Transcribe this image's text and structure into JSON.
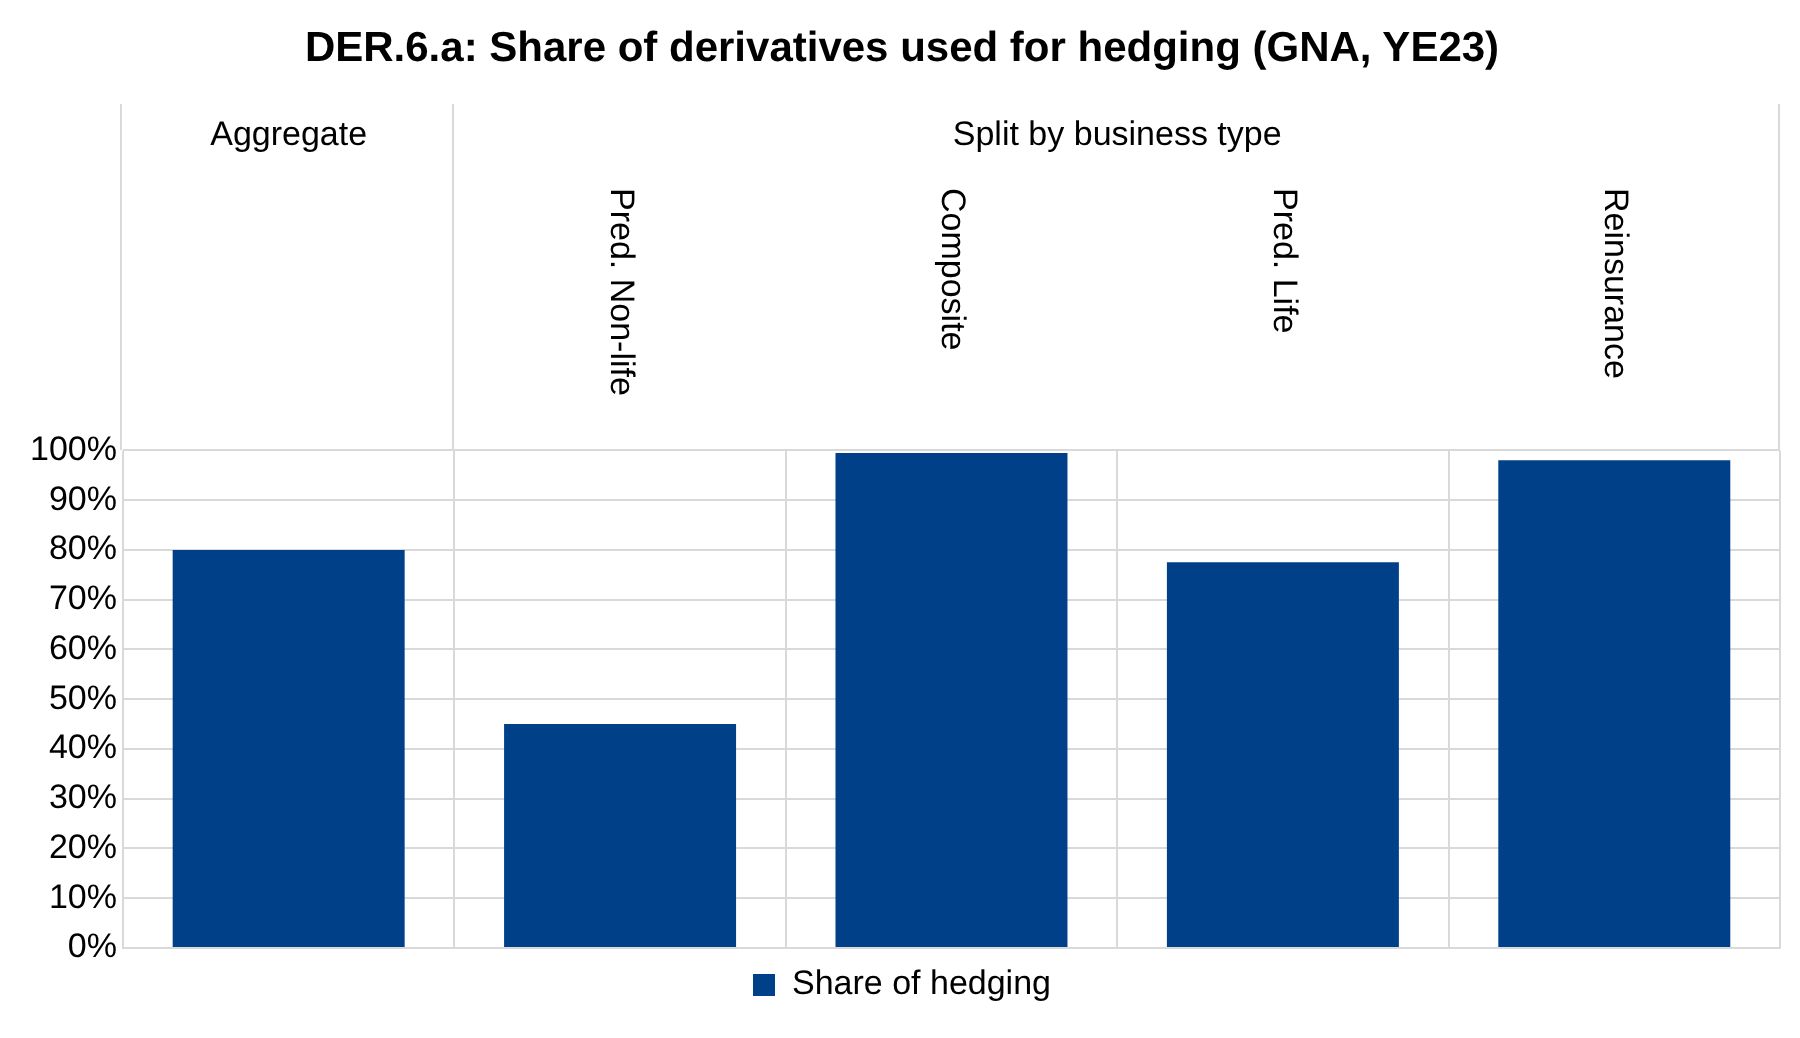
{
  "chart_data": {
    "type": "bar",
    "title": "DER.6.a: Share of derivatives used for hedging (GNA, YE23)",
    "categories": [
      null,
      "Pred. Non-life",
      "Composite",
      "Pred. Life",
      "Reinsurance"
    ],
    "series": [
      {
        "name": "Share of hedging",
        "color": "#004088",
        "values": [
          80,
          45,
          99.5,
          77.5,
          98
        ]
      }
    ],
    "ylim": [
      0,
      100
    ],
    "yticks": [
      {
        "value": 0,
        "label": "0%"
      },
      {
        "value": 10,
        "label": "10%"
      },
      {
        "value": 20,
        "label": "20%"
      },
      {
        "value": 30,
        "label": "30%"
      },
      {
        "value": 40,
        "label": "40%"
      },
      {
        "value": 50,
        "label": "50%"
      },
      {
        "value": 60,
        "label": "60%"
      },
      {
        "value": 70,
        "label": "70%"
      },
      {
        "value": 80,
        "label": "80%"
      },
      {
        "value": 90,
        "label": "90%"
      },
      {
        "value": 100,
        "label": "100%"
      }
    ],
    "annotations": [
      "Aggregate",
      "Split by business type"
    ],
    "grid": true,
    "legend": "bottom"
  }
}
